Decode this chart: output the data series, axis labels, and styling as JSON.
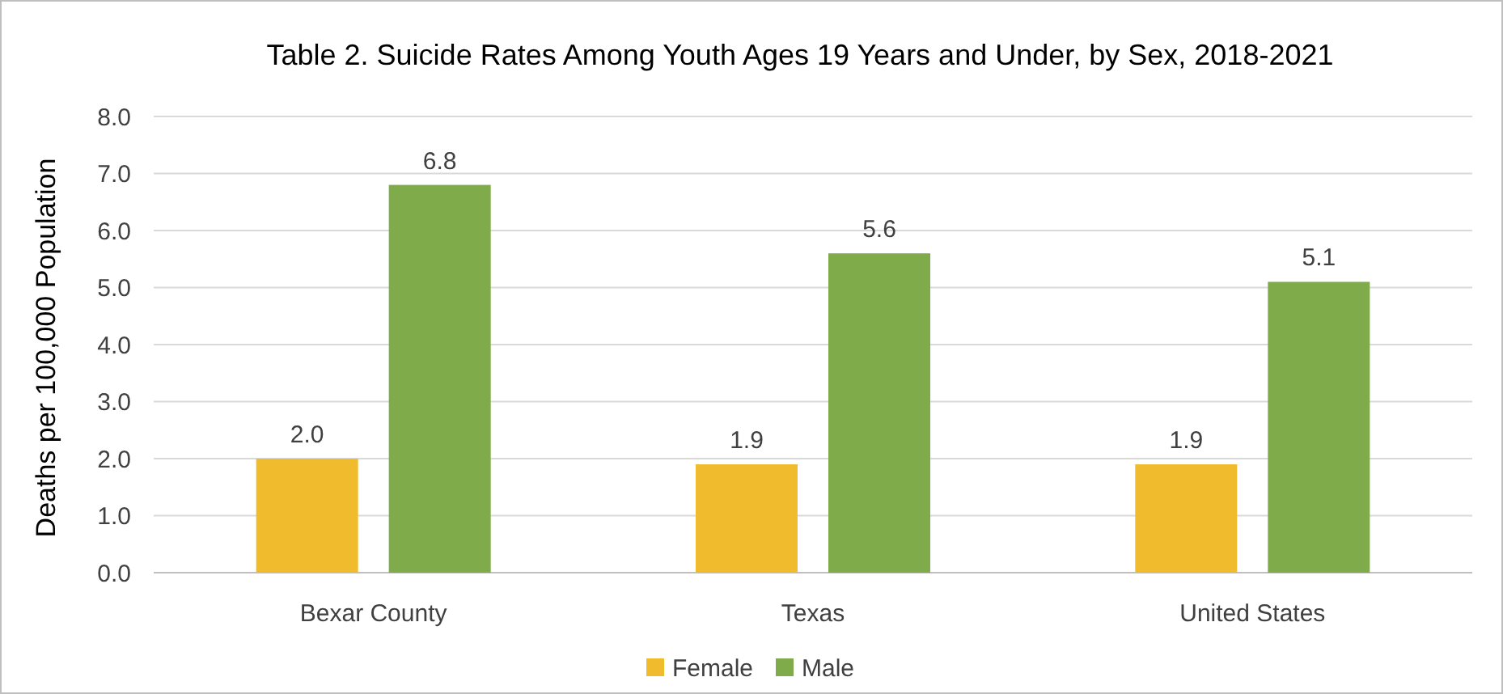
{
  "chart_data": {
    "type": "bar",
    "title": "Table 2. Suicide Rates Among Youth Ages 19 Years and Under, by Sex, 2018-2021",
    "ylabel": "Deaths per 100,000 Population",
    "categories": [
      "Bexar County",
      "Texas",
      "United States"
    ],
    "series": [
      {
        "name": "Female",
        "color": "#f0bc2e",
        "values": [
          2.0,
          1.9,
          1.9
        ],
        "value_labels": [
          "2.0",
          "1.9",
          "1.9"
        ]
      },
      {
        "name": "Male",
        "color": "#7fab4a",
        "values": [
          6.8,
          5.6,
          5.1
        ],
        "value_labels": [
          "6.8",
          "5.6",
          "5.1"
        ]
      }
    ],
    "ylim": [
      0,
      8
    ],
    "yticks": [
      {
        "value": 0,
        "label": "0.0"
      },
      {
        "value": 1,
        "label": "1.0"
      },
      {
        "value": 2,
        "label": "2.0"
      },
      {
        "value": 3,
        "label": "3.0"
      },
      {
        "value": 4,
        "label": "4.0"
      },
      {
        "value": 5,
        "label": "5.0"
      },
      {
        "value": 6,
        "label": "6.0"
      },
      {
        "value": 7,
        "label": "7.0"
      },
      {
        "value": 8,
        "label": "8.0"
      }
    ],
    "grid": "y",
    "legend": "bottom"
  }
}
